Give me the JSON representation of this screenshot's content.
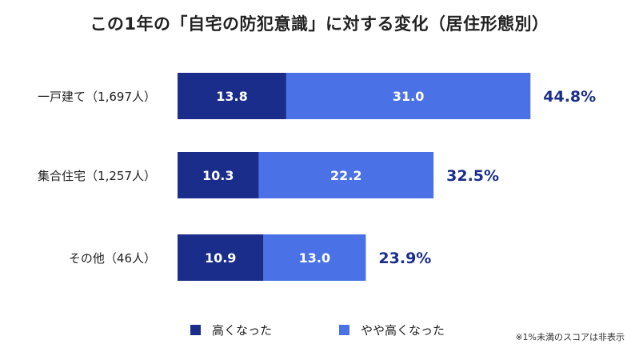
{
  "chart_data": {
    "type": "bar",
    "orientation": "horizontal",
    "stacked": true,
    "title": "この1年の「自宅の防犯意識」に対する変化（居住形態別）",
    "categories": [
      "一戸建て（1,697人）",
      "集合住宅（1,257人）",
      "その他（46人）"
    ],
    "series": [
      {
        "name": "高くなった",
        "values": [
          13.8,
          10.3,
          10.9
        ],
        "color": "#1a2d8a"
      },
      {
        "name": "やや高くなった",
        "values": [
          31.0,
          22.2,
          13.0
        ],
        "color": "#4a72e6"
      }
    ],
    "totals": [
      "44.8%",
      "32.5%",
      "23.9%"
    ],
    "total_color": "#1a2d8a",
    "legend_position": "bottom",
    "grid": false
  },
  "footnote": "※1%未満のスコアは非表示"
}
